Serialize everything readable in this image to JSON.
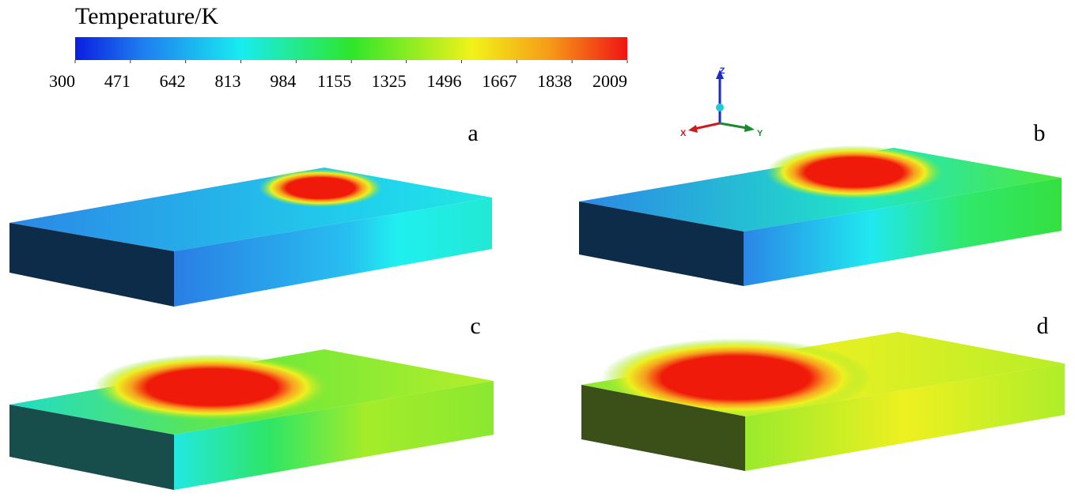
{
  "colorbar": {
    "title": "Temperature/K",
    "range": [
      300,
      2009
    ],
    "ticks": [
      300,
      471,
      642,
      813,
      984,
      1155,
      1325,
      1496,
      1667,
      1838,
      2009
    ]
  },
  "axes": {
    "z": "Z",
    "x": "X",
    "y": "Y"
  },
  "panels": [
    {
      "label": "a"
    },
    {
      "label": "b"
    },
    {
      "label": "c"
    },
    {
      "label": "d"
    }
  ]
}
